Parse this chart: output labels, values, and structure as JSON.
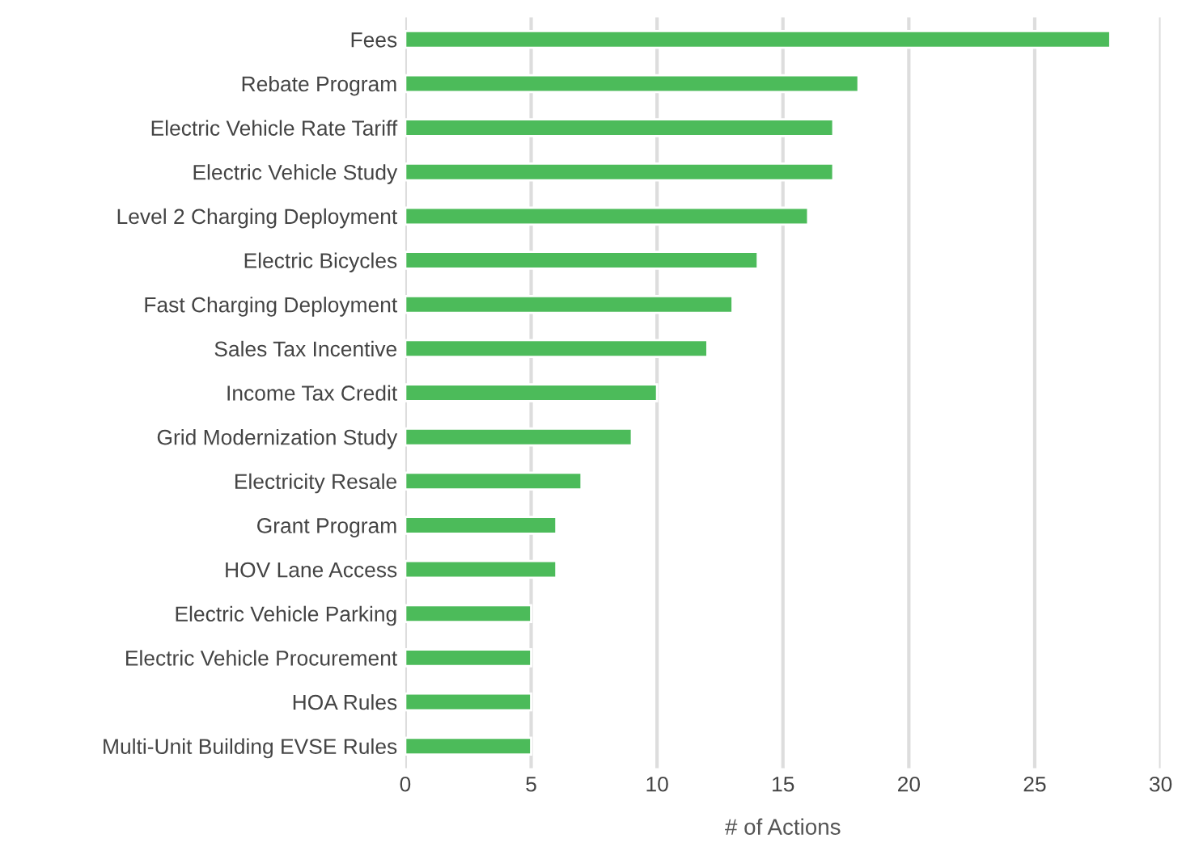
{
  "chart_data": {
    "type": "bar",
    "orientation": "horizontal",
    "xlabel": "# of Actions",
    "categories": [
      "Fees",
      "Rebate Program",
      "Electric Vehicle Rate Tariff",
      "Electric Vehicle Study",
      "Level 2 Charging Deployment",
      "Electric Bicycles",
      "Fast Charging Deployment",
      "Sales Tax Incentive",
      "Income Tax Credit",
      "Grid Modernization Study",
      "Electricity Resale",
      "Grant Program",
      "HOV Lane Access",
      "Electric Vehicle Parking",
      "Electric Vehicle Procurement",
      "HOA Rules",
      "Multi-Unit Building EVSE Rules"
    ],
    "values": [
      28,
      18,
      17,
      17,
      16,
      14,
      13,
      12,
      10,
      9,
      7,
      6,
      6,
      5,
      5,
      5,
      5
    ],
    "color": "#4cbb5a",
    "xlim": [
      0,
      30
    ],
    "xticks": [
      0,
      5,
      10,
      15,
      20,
      25,
      30
    ],
    "grid": "x",
    "legend": false
  }
}
